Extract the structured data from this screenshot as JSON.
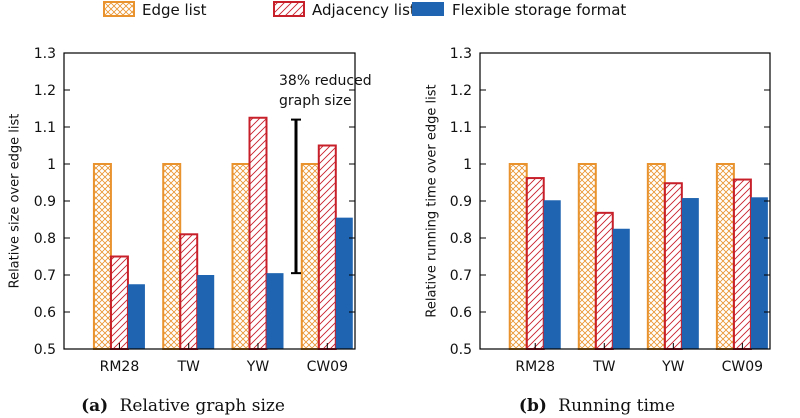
{
  "colors": {
    "edge_list": "#e8932e",
    "adjacency_list": "#c8202a",
    "flexible": "#1f64b0",
    "annotation": "#000000"
  },
  "legend": [
    {
      "key": "edge_list",
      "label": "Edge list",
      "pattern": "crosshatch"
    },
    {
      "key": "adjacency_list",
      "label": "Adjacency list",
      "pattern": "diagonal"
    },
    {
      "key": "flexible",
      "label": "Flexible storage format",
      "pattern": "solid"
    }
  ],
  "chart_data": [
    {
      "type": "bar",
      "caption_letter": "(a)",
      "caption_text": "Relative graph size",
      "ylabel": "Relative size over edge list",
      "xlabel": "",
      "ylim": [
        0.5,
        1.3
      ],
      "yticks": [
        0.5,
        0.6,
        0.7,
        0.8,
        0.9,
        1,
        1.1,
        1.2,
        1.3
      ],
      "ytick_labels": [
        "0.5",
        "0.6",
        "0.7",
        "0.8",
        "0.9",
        "1",
        "1.1",
        "1.2",
        "1.3"
      ],
      "categories": [
        "RM28",
        "TW",
        "YW",
        "CW09"
      ],
      "series": [
        {
          "key": "edge_list",
          "name": "Edge list",
          "values": [
            1.0,
            1.0,
            1.0,
            1.0
          ]
        },
        {
          "key": "adjacency_list",
          "name": "Adjacency list",
          "values": [
            0.75,
            0.81,
            1.125,
            1.05
          ]
        },
        {
          "key": "flexible",
          "name": "Flexible storage format",
          "values": [
            0.675,
            0.7,
            0.705,
            0.855
          ]
        }
      ],
      "annotation": {
        "text_line1": "38% reduced",
        "text_line2": "graph size",
        "category_index": 2,
        "from": 1.12,
        "to": 0.705
      }
    },
    {
      "type": "bar",
      "caption_letter": "(b)",
      "caption_text": "Running time",
      "ylabel": "Relative running time over edge list",
      "xlabel": "",
      "ylim": [
        0.5,
        1.3
      ],
      "yticks": [
        0.5,
        0.6,
        0.7,
        0.8,
        0.9,
        1,
        1.1,
        1.2,
        1.3
      ],
      "ytick_labels": [
        "0.5",
        "0.6",
        "0.7",
        "0.8",
        "0.9",
        "1",
        "1.1",
        "1.2",
        "1.3"
      ],
      "categories": [
        "RM28",
        "TW",
        "YW",
        "CW09"
      ],
      "series": [
        {
          "key": "edge_list",
          "name": "Edge list",
          "values": [
            1.0,
            1.0,
            1.0,
            1.0
          ]
        },
        {
          "key": "adjacency_list",
          "name": "Adjacency list",
          "values": [
            0.962,
            0.868,
            0.948,
            0.958
          ]
        },
        {
          "key": "flexible",
          "name": "Flexible storage format",
          "values": [
            0.902,
            0.825,
            0.908,
            0.91
          ]
        }
      ]
    }
  ]
}
